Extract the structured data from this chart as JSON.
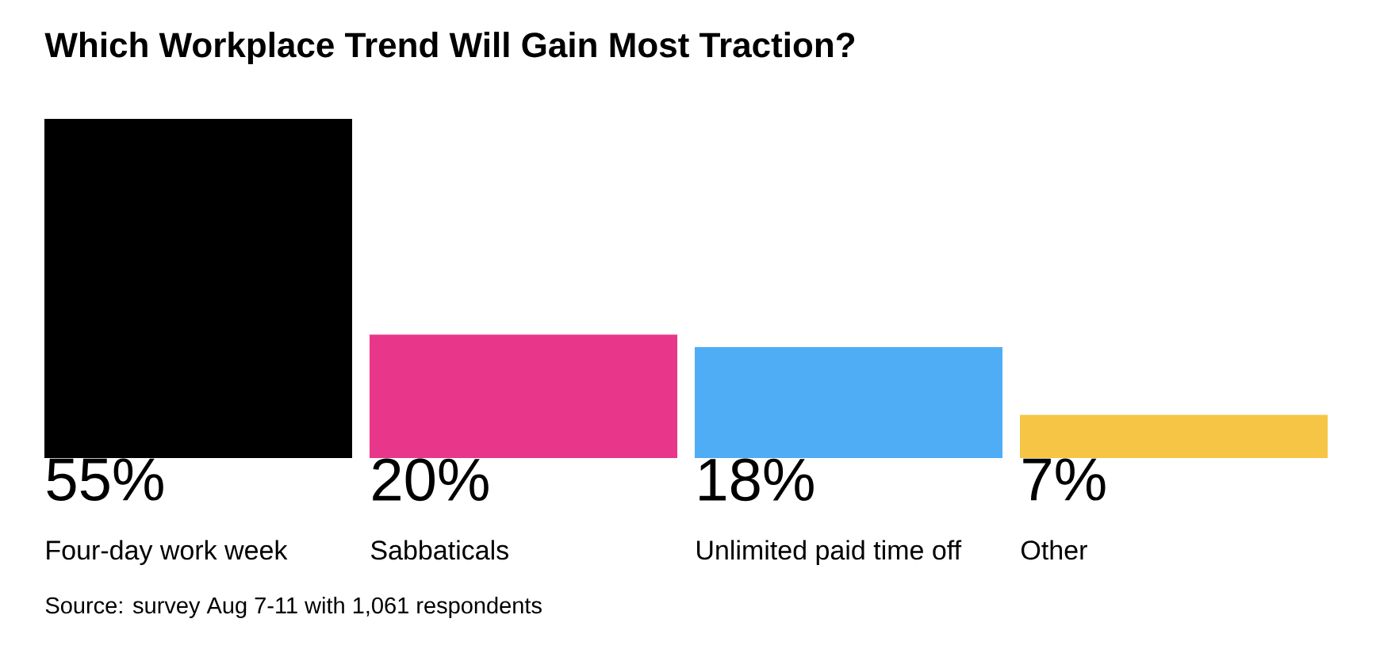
{
  "chart_data": {
    "type": "bar",
    "title": "Which Workplace Trend Will Gain Most Traction?",
    "categories": [
      "Four-day work week",
      "Sabbaticals",
      "Unlimited paid time off",
      "Other"
    ],
    "values": [
      55,
      20,
      18,
      7
    ],
    "value_labels": [
      "55%",
      "20%",
      "18%",
      "7%"
    ],
    "colors": [
      "#000000",
      "#e8368a",
      "#4fadf5",
      "#f6c545"
    ],
    "annotations": [
      "Source: survey Aug 7-11 with 1,061 respondents"
    ]
  }
}
